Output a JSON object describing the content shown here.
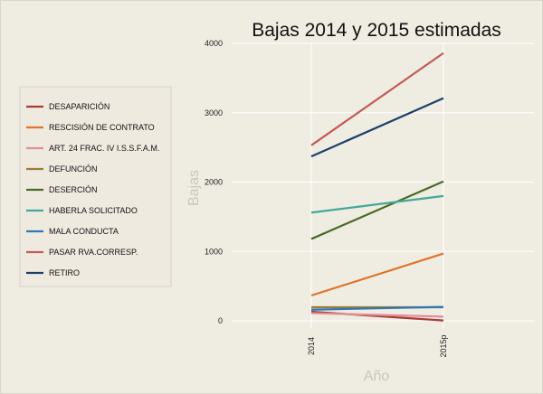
{
  "chart_data": {
    "type": "line",
    "title": "Bajas 2014 y 2015 estimadas",
    "xlabel": "Año",
    "ylabel": "Bajas",
    "categories": [
      "2014",
      "2015p"
    ],
    "ylim": [
      0,
      4000
    ],
    "yticks": [
      "0",
      "1000",
      "2000",
      "3000",
      "4000"
    ],
    "grid": true,
    "legend_position": "left",
    "series": [
      {
        "name": "DESAPARICIÓN",
        "color": "#a83a38",
        "values": [
          130,
          5
        ]
      },
      {
        "name": "RESCISIÓN DE CONTRATO",
        "color": "#e0742a",
        "values": [
          365,
          970
        ]
      },
      {
        "name": "ART. 24 FRAC. IV I.S.S.F.A.M.",
        "color": "#e08f98",
        "values": [
          110,
          60
        ]
      },
      {
        "name": "DEFUNCIÓN",
        "color": "#9b7e34",
        "values": [
          195,
          195
        ]
      },
      {
        "name": "DESERCIÓN",
        "color": "#4a6a25",
        "values": [
          1180,
          2010
        ]
      },
      {
        "name": "HABERLA SOLICITADO",
        "color": "#43a899",
        "values": [
          1560,
          1800
        ]
      },
      {
        "name": "MALA CONDUCTA",
        "color": "#2f77b6",
        "values": [
          160,
          200
        ]
      },
      {
        "name": "PASAR RVA.CORRESP.",
        "color": "#c35a58",
        "values": [
          2530,
          3860
        ]
      },
      {
        "name": "RETIRO",
        "color": "#1e3e6a",
        "values": [
          2370,
          3210
        ]
      }
    ]
  }
}
